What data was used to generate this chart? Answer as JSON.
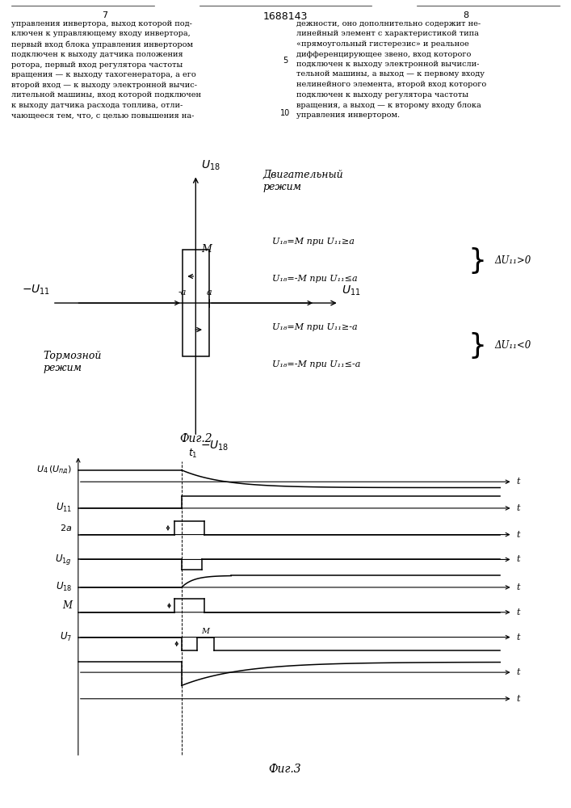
{
  "page_color": "#ffffff",
  "header": {
    "page_num_left": "7",
    "page_num_right": "8",
    "patent_num": "1688143",
    "left_text": "управления инвертора, выход которой под-\nключен к управляющему входу инвертора,\nпервый вход блока управления инвертором\nподключен к выходу датчика положения\nротора, первый вход регулятора частоты\nвращения — к выходу тахогенератора, а его\nвторой вход — к выходу электронной вычис-\nлительной машины, вход которой подключен\nк выходу датчика расхода топлива, отли-\nчающееся тем, что, с целью повышения на-",
    "right_text": "дежности, оно дополнительно содержит не-\nлинейный элемент с характеристикой типа\n«прямоугольный гистерезис» и реальное\nдифференцирующее звено, вход которого\nподключен к выходу электронной вычисли-\nтельной машины, а выход — к первому входу\nнелинейного элемента, второй вход которого\nподключен к выходу регулятора частоты\nвращения, а выход — к второму входу блока\nуправления инвертором.",
    "line_num_5": "5",
    "line_num_10": "10"
  },
  "fig2": {
    "caption": "Фиг.2",
    "drive_mode": "Двигательный\nрежим",
    "brake_mode": "Тормозной\nрежим",
    "M_label": "M",
    "minus_a_label": "-a",
    "a_label": "a",
    "eq1": "U₁₈=M при U₁₁≥a",
    "eq2": "U₁₈=-M при U₁₁≤a",
    "eq3": "U₁₈=M при U₁₁≥-a",
    "eq4": "U₁₈=-M при U₁₁≤-a",
    "delta_pos": "ΔU₁₁>0",
    "delta_neg": "ΔU₁₁<0"
  },
  "fig3": {
    "caption": "Фиг.3",
    "t1_label": "t₁"
  }
}
